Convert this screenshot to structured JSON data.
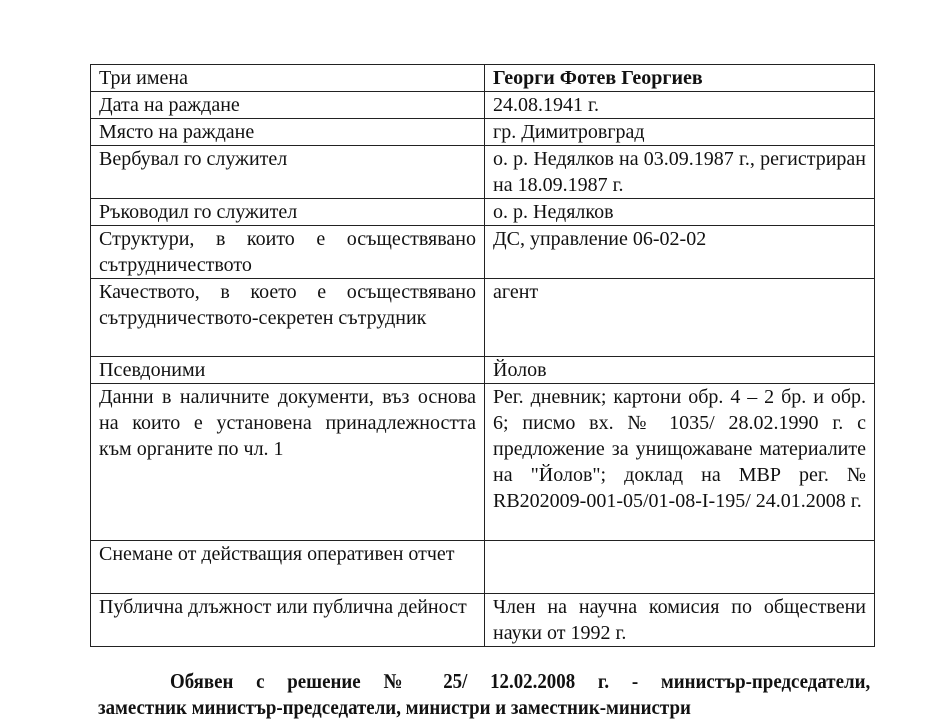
{
  "table": {
    "rows": [
      {
        "label": "Три имена",
        "value": "Георги Фотев Георгиев",
        "bold": true
      },
      {
        "label": "Дата на раждане",
        "value": "24.08.1941 г."
      },
      {
        "label": "Място на раждане",
        "value": "гр. Димитровград"
      },
      {
        "label": "Вербувал го служител",
        "value": "о. р. Недялков на 03.09.1987 г., регистриран на 18.09.1987 г."
      },
      {
        "label": "Ръководил го служител",
        "value": "о. р. Недялков"
      },
      {
        "label": "Структури, в които е осъществявано сътрудничеството",
        "value": "ДС, управление 06-02-02"
      },
      {
        "label": "Качеството, в което е осъществявано сътрудничеството-секретен сътрудник",
        "value": "агент"
      },
      {
        "label": "Псевдоними",
        "value": "Йолов"
      },
      {
        "label": "Данни в наличните документи, въз основа на които е установена принадлежността към органите по чл. 1",
        "value": "Рег. дневник; картони обр. 4 – 2 бр. и обр. 6; писмо вх. № 1035/ 28.02.1990 г. с предложение за унищожаване материалите на \"Йолов\"; доклад на МВР рег. № RB202009-001-05/01-08-I-195/ 24.01.2008 г."
      },
      {
        "label": "Снемане от действащия оперативен отчет",
        "value": ""
      },
      {
        "label": "Публична длъжност или публична дейност",
        "value": "Член на научна комисия по обществени науки от 1992 г."
      }
    ]
  },
  "footer": {
    "line1": "Обявен с решение № 25/ 12.02.2008 г. - министър-председатели,",
    "line2": "заместник министър-председатели, министри и заместник-министри"
  }
}
